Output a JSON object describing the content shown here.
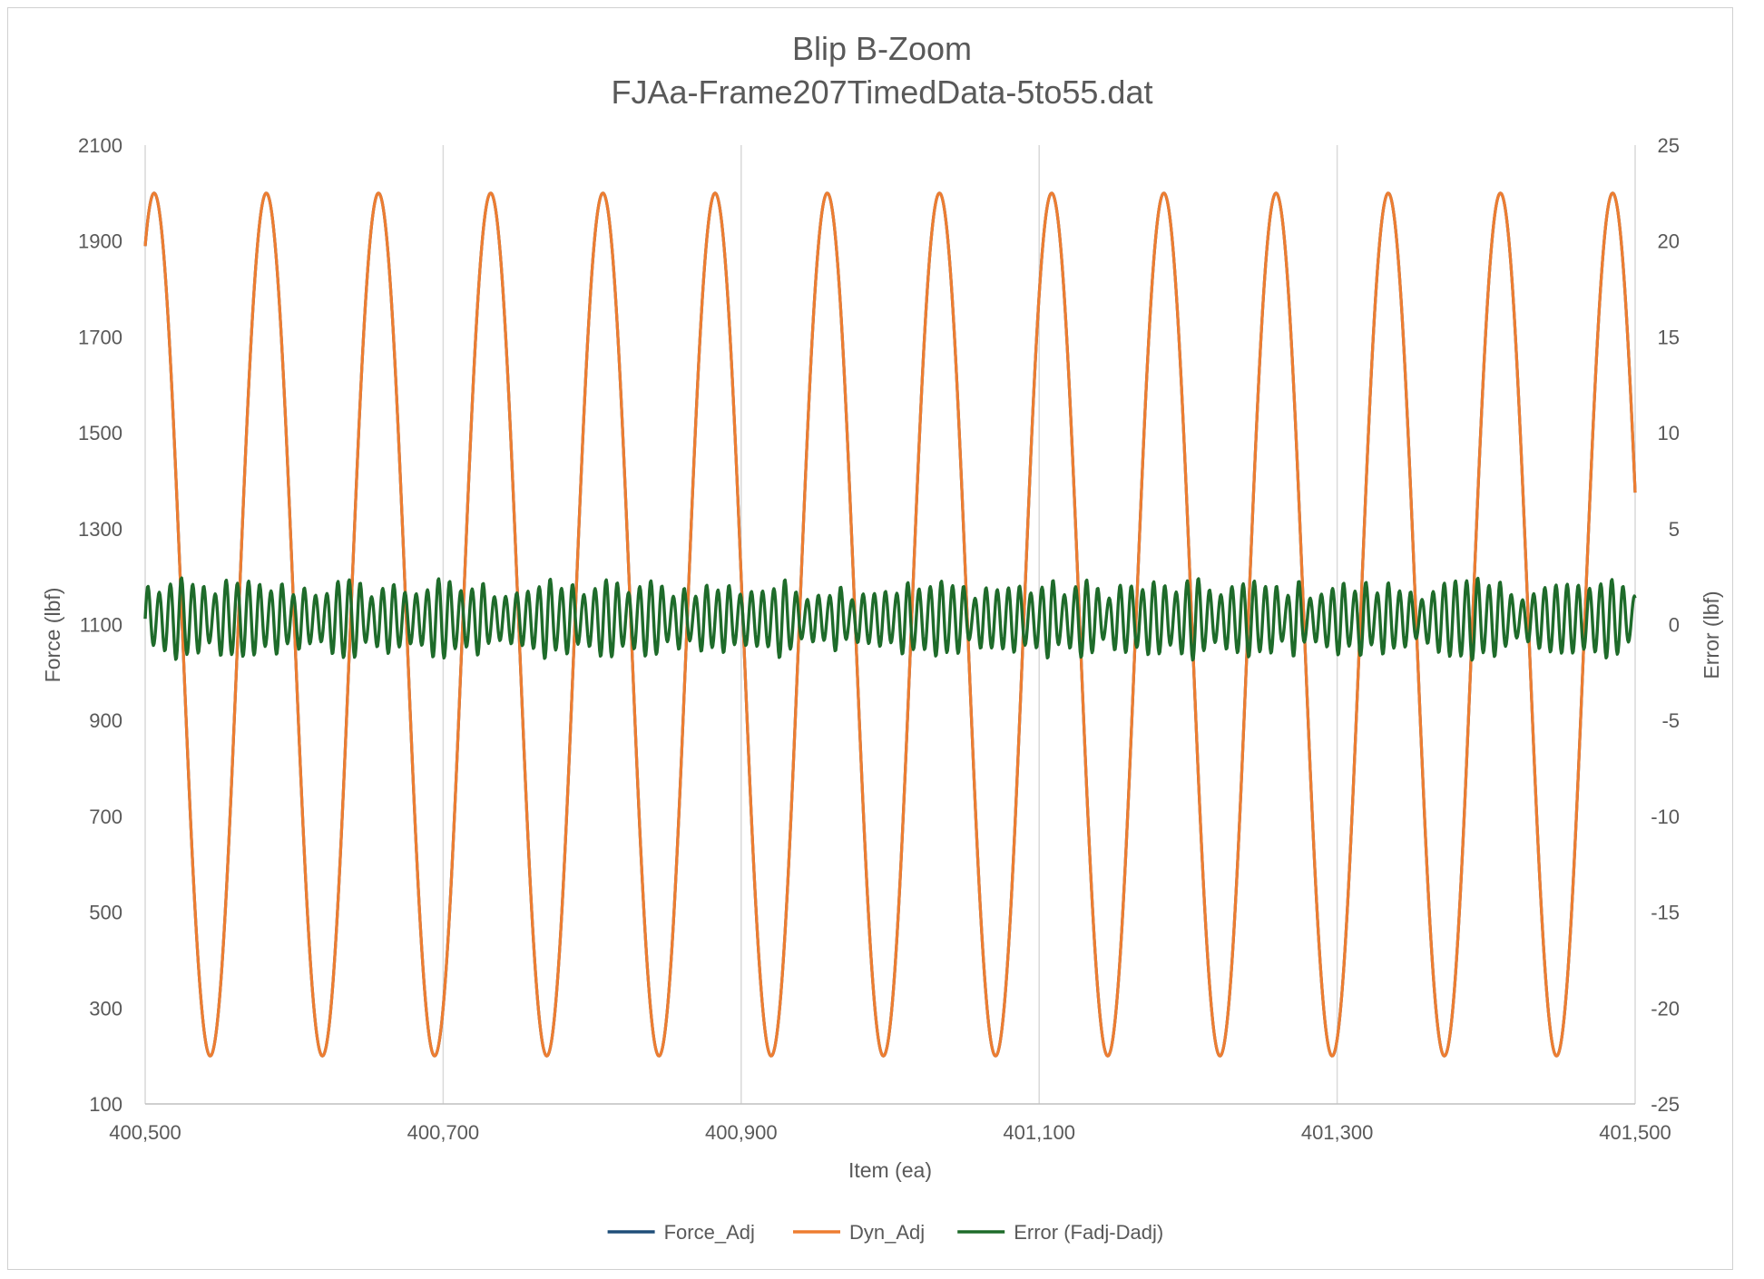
{
  "chart_data": {
    "type": "line",
    "title": "Blip B-Zoom",
    "subtitle": "FJAa-Frame207TimedData-5to55.dat",
    "xlabel": "Item (ea)",
    "ylabel": "Force (lbf)",
    "y2label": "Error (lbf)",
    "xlim": [
      400500,
      401500
    ],
    "ylim": [
      100,
      2100
    ],
    "y2lim": [
      -25,
      25
    ],
    "x_ticks": [
      400500,
      400700,
      400900,
      401100,
      401300,
      401500
    ],
    "x_tick_labels": [
      "400,500",
      "400,700",
      "400,900",
      "401,100",
      "401,300",
      "401,500"
    ],
    "y_ticks": [
      100,
      300,
      500,
      700,
      900,
      1100,
      1300,
      1500,
      1700,
      1900,
      2100
    ],
    "y_tick_labels": [
      "100",
      "300",
      "500",
      "700",
      "900",
      "1100",
      "1300",
      "1500",
      "1700",
      "1900",
      "2100"
    ],
    "y2_ticks": [
      -25,
      -20,
      -15,
      -10,
      -5,
      0,
      5,
      10,
      15,
      20,
      25
    ],
    "y2_tick_labels": [
      "-25",
      "-20",
      "-15",
      "-10",
      "-5",
      "0",
      "5",
      "10",
      "15",
      "20",
      "25"
    ],
    "grid": "vertical major gridlines",
    "legend_position": "bottom",
    "series": [
      {
        "name": "Force_Adj",
        "axis": "left",
        "color": "#1f4e79",
        "model": {
          "kind": "sine",
          "mean": 1100,
          "amplitude": 900,
          "period": 75.3,
          "peak_x": 400506
        }
      },
      {
        "name": "Dyn_Adj",
        "axis": "left",
        "color": "#ed7d31",
        "model": {
          "kind": "sine",
          "mean": 1100,
          "amplitude": 900,
          "period": 75.3,
          "peak_x": 400506
        }
      },
      {
        "name": "Error (Fadj-Dadj)",
        "axis": "right",
        "color": "#1e6b2a",
        "model": {
          "kind": "oscillation",
          "mean": 0.3,
          "amplitude": 1.7,
          "period": 7.5,
          "min": -2.9,
          "max": 3.9
        }
      }
    ]
  }
}
